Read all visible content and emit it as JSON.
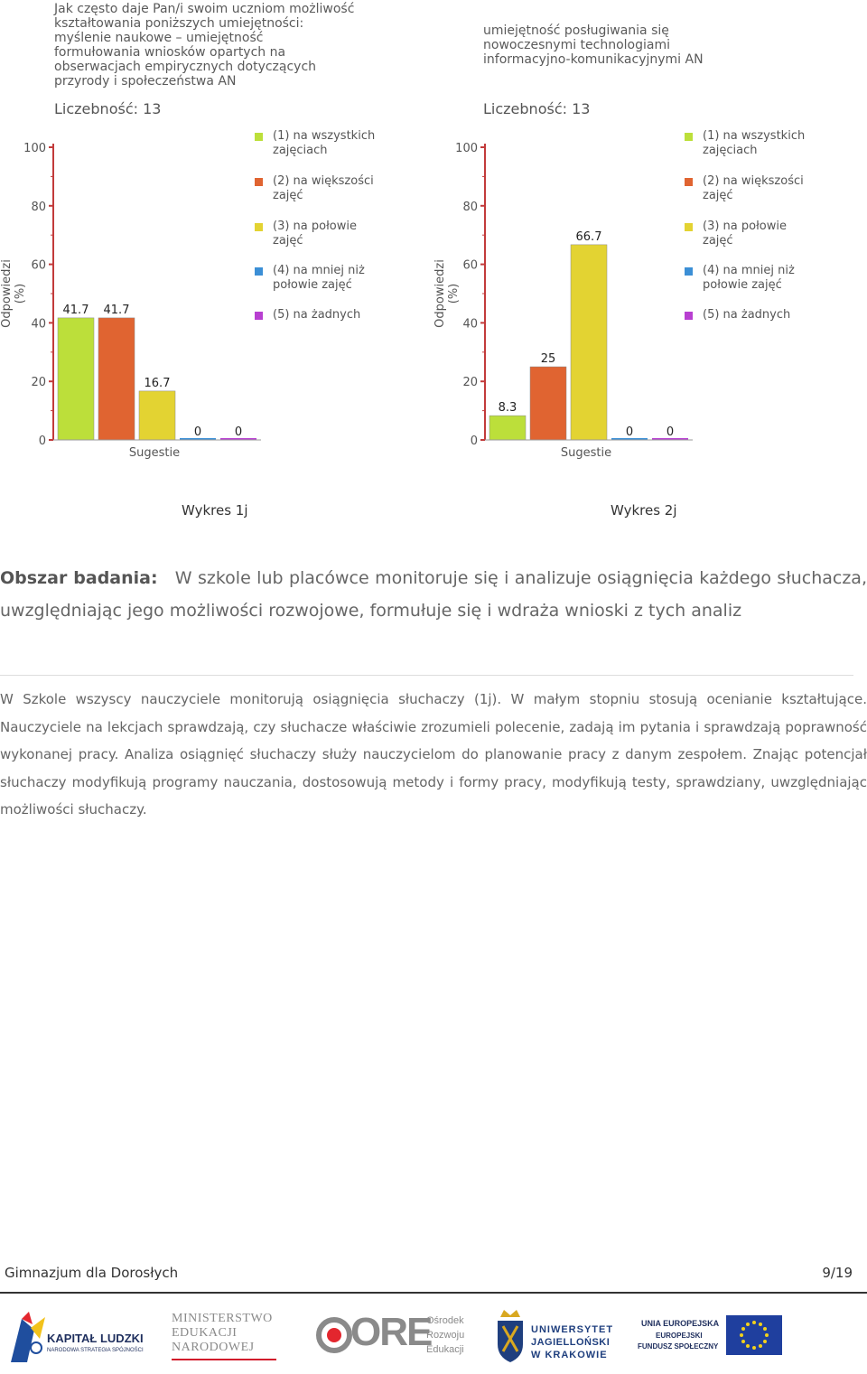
{
  "chart_data": [
    {
      "type": "bar",
      "title": "Jak często daje Pan/i swoim uczniom możliwość\nkształtowania poniższych umiejętności:\nmyślenie naukowe – umiejętność\nformułowania wniosków opartych na\nobserwacjach empirycznych dotyczących\nprzyrody i społeczeństwa AN",
      "count_label": "Liczebność: 13",
      "ylabel": "Odpowiedzi (%)",
      "xlabel": "Sugestie",
      "ylim": [
        0,
        100
      ],
      "yticks": [
        0,
        20,
        40,
        60,
        80,
        100
      ],
      "categories": [
        "(1) na wszystkich zajęciach",
        "(2) na większości zajęć",
        "(3) na połowie zajęć",
        "(4) na mniej niż połowie zajęć",
        "(5) na żadnych"
      ],
      "values": [
        41.7,
        41.7,
        16.7,
        0,
        0
      ],
      "value_labels": [
        "41.7",
        "41.7",
        "16.7",
        "0",
        "0"
      ],
      "colors": [
        "#bcdf3a",
        "#e06431",
        "#e3d332",
        "#3b8fd6",
        "#b83fd1"
      ],
      "legend": [
        "(1) na wszystkich\nzajęciach",
        "(2) na większości\nzajęć",
        "(3) na połowie\nzajęć",
        "(4) na mniej niż\npołowie zajęć",
        "(5) na żadnych"
      ],
      "legend_position": "right",
      "grid": false
    },
    {
      "type": "bar",
      "title": "umiejętność posługiwania się\nnowoczesnymi technologiami\ninformacyjno-komunikacyjnymi AN",
      "count_label": "Liczebność: 13",
      "ylabel": "Odpowiedzi (%)",
      "xlabel": "Sugestie",
      "ylim": [
        0,
        100
      ],
      "yticks": [
        0,
        20,
        40,
        60,
        80,
        100
      ],
      "categories": [
        "(1) na wszystkich zajęciach",
        "(2) na większości zajęć",
        "(3) na połowie zajęć",
        "(4) na mniej niż połowie zajęć",
        "(5) na żadnych"
      ],
      "values": [
        8.3,
        25,
        66.7,
        0,
        0
      ],
      "value_labels": [
        "8.3",
        "25",
        "66.7",
        "0",
        "0"
      ],
      "colors": [
        "#bcdf3a",
        "#e06431",
        "#e3d332",
        "#3b8fd6",
        "#b83fd1"
      ],
      "legend": [
        "(1) na wszystkich\nzajęciach",
        "(2) na większości\nzajęć",
        "(3) na połowie\nzajęć",
        "(4) na mniej niż\npołowie zajęć",
        "(5) na żadnych"
      ],
      "legend_position": "right",
      "grid": false
    }
  ],
  "captions": [
    "Wykres 1j",
    "Wykres 2j"
  ],
  "section": {
    "label": "Obszar badania:",
    "text": "W szkole lub placówce monitoruje się i analizuje osiągnięcia każdego słuchacza, uwzględniając jego możliwości rozwojowe, formułuje się i wdraża wnioski z tych analiz"
  },
  "body": "W Szkole wszyscy nauczyciele monitorują osiągnięcia słuchaczy (1j). W małym stopniu stosują ocenianie kształtujące. Nauczyciele na lekcjach sprawdzają, czy słuchacze właściwie zrozumieli polecenie, zadają im pytania i sprawdzają poprawność wykonanej pracy. Analiza osiągnięć słuchaczy służy nauczycielom do planowanie pracy z danym zespołem. Znając potencjał słuchaczy modyfikują programy nauczania, dostosowują metody i formy pracy, modyfikują testy, sprawdziany, uwzględniając możliwości słuchaczy.",
  "footer": {
    "left": "Gimnazjum dla Dorosłych",
    "right": "9/19"
  },
  "logos": {
    "kl_line1": "KAPITAŁ LUDZKI",
    "kl_line2": "NARODOWA STRATEGIA SPÓJNOŚCI",
    "men_line1": "MINISTERSTWO",
    "men_line2": "EDUKACJI",
    "men_line3": "NARODOWEJ",
    "ore_big": "ORE",
    "ore_line1": "Ośrodek",
    "ore_line2": "Rozwoju",
    "ore_line3": "Edukacji",
    "uj_line1": "UNIWERSYTET",
    "uj_line2": "JAGIELLOŃSKI",
    "uj_line3": "W KRAKOWIE",
    "ue_line1": "UNIA EUROPEJSKA",
    "ue_line2": "EUROPEJSKI",
    "ue_line3": "FUNDUSZ SPOŁECZNY"
  }
}
